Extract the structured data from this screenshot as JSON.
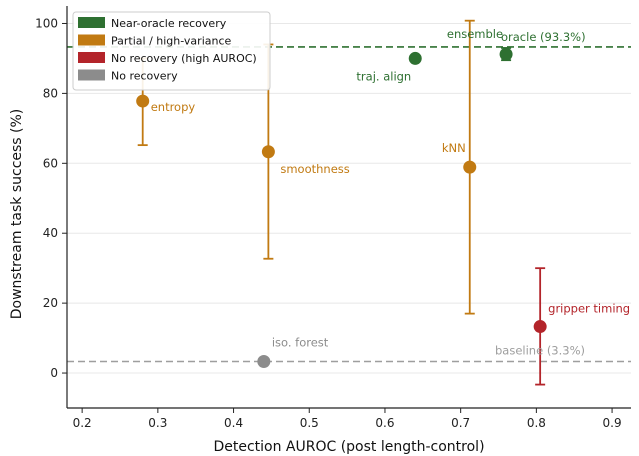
{
  "chart_data": {
    "type": "scatter",
    "xlabel": "Detection AUROC (post length-control)",
    "ylabel": "Downstream task success (%)",
    "xlim": [
      0.18,
      0.925
    ],
    "ylim": [
      -10,
      105
    ],
    "xticks": [
      0.2,
      0.3,
      0.4,
      0.5,
      0.6,
      0.7,
      0.8,
      0.9
    ],
    "yticks": [
      0,
      20,
      40,
      60,
      80,
      100
    ],
    "xtick_labels": [
      "0.2",
      "0.3",
      "0.4",
      "0.5",
      "0.6",
      "0.7",
      "0.8",
      "0.9"
    ],
    "ytick_labels": [
      "0",
      "20",
      "40",
      "60",
      "80",
      "100"
    ],
    "grid": "horizontal",
    "legend_position": "top-left",
    "categories": [
      {
        "key": "near",
        "label": "Near-oracle recovery",
        "color": "#2e7031"
      },
      {
        "key": "partial",
        "label": "Partial / high-variance",
        "color": "#c17a12"
      },
      {
        "key": "none_high",
        "label": "No recovery (high AUROC)",
        "color": "#b3242a"
      },
      {
        "key": "none",
        "label": "No recovery",
        "color": "#8c8c8c"
      }
    ],
    "reference_lines": [
      {
        "label": "oracle (93.3%)",
        "y": 93.3,
        "color": "#2e7031"
      },
      {
        "label": "baseline (3.3%)",
        "y": 3.3,
        "color": "#9e9e9e"
      }
    ],
    "points": [
      {
        "name": "entropy",
        "x": 0.28,
        "y": 77.8,
        "err_low": 65.2,
        "err_high": 90.0,
        "category": "partial",
        "label_anchor": "start"
      },
      {
        "name": "smoothness",
        "x": 0.446,
        "y": 63.3,
        "err_low": 32.7,
        "err_high": 94.0,
        "category": "partial",
        "label_anchor": "start"
      },
      {
        "name": "kNN",
        "x": 0.712,
        "y": 58.9,
        "err_low": 17.0,
        "err_high": 100.8,
        "category": "partial",
        "label_anchor": "end"
      },
      {
        "name": "traj. align",
        "x": 0.64,
        "y": 90.0,
        "err_low": null,
        "err_high": null,
        "category": "near",
        "label_anchor": "end"
      },
      {
        "name": "ensemble",
        "x": 0.76,
        "y": 91.2,
        "err_low": 89.5,
        "err_high": 93.0,
        "category": "near",
        "label_anchor": "end"
      },
      {
        "name": "gripper timing",
        "x": 0.805,
        "y": 13.3,
        "err_low": -3.3,
        "err_high": 30.0,
        "category": "none_high",
        "label_anchor": "start"
      },
      {
        "name": "iso. forest",
        "x": 0.44,
        "y": 3.3,
        "err_low": null,
        "err_high": null,
        "category": "none",
        "label_anchor": "start"
      }
    ]
  }
}
